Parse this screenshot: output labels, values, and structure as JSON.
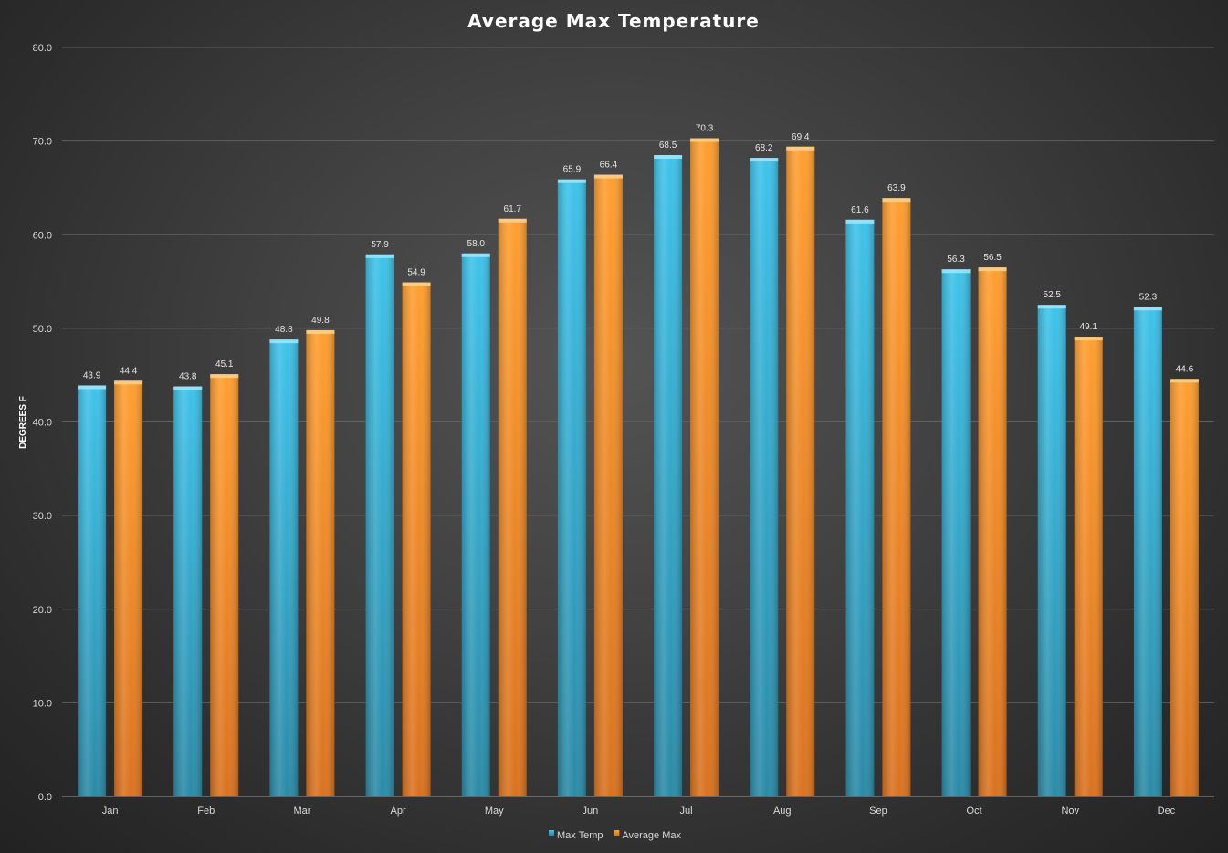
{
  "chart_data": {
    "type": "bar",
    "title": "Average Max Temperature",
    "xlabel": "",
    "ylabel": "DEGREES F",
    "ylim": [
      0,
      80
    ],
    "yticks": [
      "0.0",
      "10.0",
      "20.0",
      "30.0",
      "40.0",
      "50.0",
      "60.0",
      "70.0",
      "80.0"
    ],
    "grid": true,
    "legend_position": "bottom",
    "categories": [
      "Jan",
      "Feb",
      "Mar",
      "Apr",
      "May",
      "Jun",
      "Jul",
      "Aug",
      "Sep",
      "Oct",
      "Nov",
      "Dec"
    ],
    "series": [
      {
        "name": "Max Temp",
        "color": "#36b6dd",
        "values": [
          43.9,
          43.8,
          48.8,
          57.9,
          58.0,
          65.9,
          68.5,
          68.2,
          61.6,
          56.3,
          52.5,
          52.3
        ],
        "labels": [
          "43.9",
          "43.8",
          "48.8",
          "57.9",
          "58.0",
          "65.9",
          "68.5",
          "68.2",
          "61.6",
          "56.3",
          "52.5",
          "52.3"
        ]
      },
      {
        "name": "Average Max",
        "color": "#f7952a",
        "values": [
          44.4,
          45.1,
          49.8,
          54.9,
          61.7,
          66.4,
          70.3,
          69.4,
          63.9,
          56.5,
          49.1,
          44.6
        ],
        "labels": [
          "44.4",
          "45.1",
          "49.8",
          "54.9",
          "61.7",
          "66.4",
          "70.3",
          "69.4",
          "63.9",
          "56.5",
          "49.1",
          "44.6"
        ]
      }
    ]
  }
}
